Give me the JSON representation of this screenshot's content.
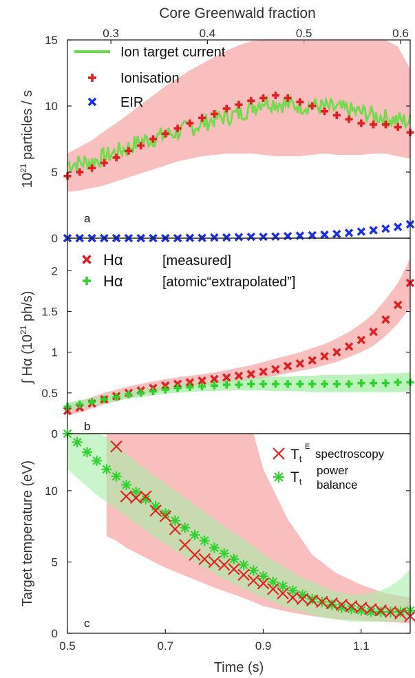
{
  "chart_data": [
    {
      "type": "scatter",
      "panel_label": "a",
      "top_xlabel": "Core Greenwald fraction",
      "top_ticks": [
        "0.3",
        "0.4",
        "0.5",
        "0.6"
      ],
      "top_tick_values": [
        0.3,
        0.4,
        0.5,
        0.6
      ],
      "top_xlim": [
        0.255,
        0.61
      ],
      "ylabel": "10²¹ particles / s",
      "ylabel_base": "10",
      "ylabel_sup": "21",
      "ylabel_rest": " particles / s",
      "xlim": [
        0.5,
        1.2
      ],
      "ylim": [
        0,
        15
      ],
      "yticks": [
        "0",
        "5",
        "10",
        "15"
      ],
      "ytick_values": [
        0,
        5,
        10,
        15
      ],
      "legend_position": "top-left",
      "series": [
        {
          "name": "Ion target current",
          "kind": "line",
          "color": "#66dd44",
          "x": [
            0.5,
            0.55,
            0.6,
            0.65,
            0.7,
            0.75,
            0.8,
            0.85,
            0.9,
            0.95,
            1.0,
            1.05,
            1.1,
            1.15,
            1.2
          ],
          "y": [
            5.6,
            5.8,
            6.5,
            7.3,
            7.8,
            8.3,
            9.0,
            9.4,
            10.4,
            10.1,
            10.0,
            9.8,
            9.5,
            9.1,
            8.8
          ]
        },
        {
          "name": "Ionisation",
          "kind": "marker",
          "marker": "plus",
          "color": "#e02020",
          "band_color": "#f7a8a8",
          "x": [
            0.5,
            0.525,
            0.55,
            0.575,
            0.6,
            0.625,
            0.65,
            0.675,
            0.7,
            0.725,
            0.75,
            0.775,
            0.8,
            0.825,
            0.85,
            0.875,
            0.9,
            0.925,
            0.95,
            0.975,
            1.0,
            1.025,
            1.05,
            1.075,
            1.1,
            1.125,
            1.15,
            1.175,
            1.2
          ],
          "y": [
            4.7,
            5.0,
            5.3,
            5.7,
            6.1,
            6.6,
            7.0,
            7.5,
            7.9,
            8.3,
            8.7,
            9.1,
            9.4,
            9.8,
            10.1,
            10.4,
            10.6,
            10.8,
            10.6,
            10.3,
            10.0,
            9.6,
            9.3,
            9.0,
            8.7,
            8.6,
            8.6,
            8.4,
            8.0
          ],
          "band_low": [
            3.5,
            3.6,
            3.8,
            4.0,
            4.3,
            4.6,
            4.9,
            5.2,
            5.5,
            5.8,
            6.0,
            6.2,
            6.3,
            6.4,
            6.4,
            6.4,
            6.3,
            6.2,
            6.2,
            6.2,
            6.3,
            6.4,
            6.3,
            6.3,
            6.3,
            6.4,
            6.4,
            6.2,
            6.0
          ],
          "band_high": [
            6.4,
            6.9,
            7.4,
            8.1,
            8.7,
            9.4,
            10.1,
            10.8,
            11.5,
            12.1,
            12.7,
            13.2,
            13.7,
            14.2,
            14.6,
            14.9,
            15.0,
            15.0,
            15.0,
            15.0,
            15.0,
            15.0,
            15.0,
            15.0,
            15.0,
            15.0,
            15.0,
            14.5,
            12.8
          ]
        },
        {
          "name": "EIR",
          "kind": "marker",
          "marker": "x",
          "color": "#1a2ee6",
          "x": [
            0.5,
            0.525,
            0.55,
            0.575,
            0.6,
            0.625,
            0.65,
            0.675,
            0.7,
            0.725,
            0.75,
            0.775,
            0.8,
            0.825,
            0.85,
            0.875,
            0.9,
            0.925,
            0.95,
            0.975,
            1.0,
            1.025,
            1.05,
            1.075,
            1.1,
            1.125,
            1.15,
            1.175,
            1.2
          ],
          "y": [
            0.0,
            0.0,
            0.0,
            0.0,
            0.0,
            0.0,
            0.0,
            0.0,
            0.0,
            0.0,
            0.02,
            0.02,
            0.05,
            0.05,
            0.08,
            0.1,
            0.1,
            0.12,
            0.15,
            0.18,
            0.22,
            0.26,
            0.32,
            0.4,
            0.5,
            0.6,
            0.72,
            0.85,
            1.05
          ]
        }
      ]
    },
    {
      "type": "scatter",
      "panel_label": "b",
      "ylabel": "∫ Hα (10²¹ ph/s)",
      "ylabel_prefix": "∫ Hα (10",
      "ylabel_sup": "21",
      "ylabel_rest": " ph/s)",
      "xlim": [
        0.5,
        1.2
      ],
      "ylim": [
        0,
        2.4
      ],
      "yticks": [
        "0",
        "0.5",
        "1",
        "1.5",
        "2"
      ],
      "ytick_values": [
        0,
        0.5,
        1,
        1.5,
        2
      ],
      "legend_position": "top-left",
      "series": [
        {
          "name": "Hα   [measured]",
          "legend_symbol": "Hα",
          "legend_text": "[measured]",
          "kind": "marker",
          "marker": "x",
          "color": "#e02020",
          "band_color": "#f7a8a8",
          "x": [
            0.5,
            0.525,
            0.55,
            0.575,
            0.6,
            0.625,
            0.65,
            0.675,
            0.7,
            0.725,
            0.75,
            0.775,
            0.8,
            0.825,
            0.85,
            0.875,
            0.9,
            0.925,
            0.95,
            0.975,
            1.0,
            1.025,
            1.05,
            1.075,
            1.1,
            1.125,
            1.15,
            1.175,
            1.2
          ],
          "y": [
            0.28,
            0.32,
            0.37,
            0.42,
            0.46,
            0.5,
            0.53,
            0.56,
            0.59,
            0.61,
            0.63,
            0.65,
            0.67,
            0.69,
            0.71,
            0.73,
            0.76,
            0.79,
            0.83,
            0.86,
            0.9,
            0.95,
            1.0,
            1.07,
            1.15,
            1.25,
            1.4,
            1.58,
            1.85
          ],
          "band_low": [
            0.22,
            0.26,
            0.31,
            0.36,
            0.4,
            0.44,
            0.47,
            0.5,
            0.53,
            0.55,
            0.57,
            0.59,
            0.61,
            0.63,
            0.64,
            0.66,
            0.68,
            0.71,
            0.74,
            0.77,
            0.8,
            0.84,
            0.88,
            0.94,
            1.0,
            1.08,
            1.2,
            1.35,
            1.55
          ],
          "band_high": [
            0.36,
            0.4,
            0.45,
            0.5,
            0.54,
            0.58,
            0.61,
            0.64,
            0.67,
            0.69,
            0.71,
            0.73,
            0.75,
            0.78,
            0.81,
            0.84,
            0.88,
            0.92,
            0.96,
            1.0,
            1.05,
            1.1,
            1.17,
            1.25,
            1.35,
            1.47,
            1.65,
            1.85,
            2.15
          ]
        },
        {
          "name": "Hα   [atomic “extrapolated”]",
          "legend_symbol": "Hα",
          "legend_text": "[atomic“extrapolated”]",
          "kind": "marker",
          "marker": "plus",
          "color": "#2ed12e",
          "band_color": "#a6eea6",
          "x": [
            0.5,
            0.525,
            0.55,
            0.575,
            0.6,
            0.625,
            0.65,
            0.675,
            0.7,
            0.725,
            0.75,
            0.775,
            0.8,
            0.825,
            0.85,
            0.875,
            0.9,
            0.925,
            0.95,
            0.975,
            1.0,
            1.025,
            1.05,
            1.075,
            1.1,
            1.125,
            1.15,
            1.175,
            1.2
          ],
          "y": [
            0.33,
            0.36,
            0.39,
            0.42,
            0.45,
            0.48,
            0.5,
            0.52,
            0.54,
            0.56,
            0.57,
            0.58,
            0.59,
            0.6,
            0.6,
            0.61,
            0.61,
            0.61,
            0.61,
            0.61,
            0.61,
            0.61,
            0.61,
            0.61,
            0.62,
            0.62,
            0.62,
            0.63,
            0.63
          ],
          "band_low": [
            0.28,
            0.31,
            0.34,
            0.37,
            0.4,
            0.43,
            0.45,
            0.47,
            0.49,
            0.5,
            0.51,
            0.52,
            0.52,
            0.53,
            0.53,
            0.53,
            0.53,
            0.52,
            0.52,
            0.52,
            0.51,
            0.51,
            0.51,
            0.51,
            0.51,
            0.51,
            0.51,
            0.51,
            0.52
          ],
          "band_high": [
            0.38,
            0.41,
            0.44,
            0.47,
            0.5,
            0.53,
            0.55,
            0.57,
            0.59,
            0.61,
            0.63,
            0.64,
            0.65,
            0.66,
            0.67,
            0.68,
            0.69,
            0.7,
            0.7,
            0.71,
            0.71,
            0.72,
            0.72,
            0.72,
            0.73,
            0.73,
            0.74,
            0.74,
            0.75
          ]
        }
      ]
    },
    {
      "type": "scatter",
      "panel_label": "c",
      "xlabel": "Time (s)",
      "ylabel": "Target temperature (eV)",
      "xlim": [
        0.5,
        1.2
      ],
      "ylim": [
        0,
        14
      ],
      "xticks": [
        "0.5",
        "0.7",
        "0.9",
        "1.1"
      ],
      "xtick_values": [
        0.5,
        0.7,
        0.9,
        1.1
      ],
      "yticks": [
        "0",
        "5",
        "10"
      ],
      "ytick_values": [
        0,
        5,
        10
      ],
      "legend_position": "top-right",
      "series": [
        {
          "name": "Tt E spectroscopy",
          "legend_base": "T",
          "legend_sub": "t",
          "legend_sup": "E",
          "legend_text": "spectroscopy",
          "kind": "marker",
          "marker": "x",
          "color": "#e02020",
          "band_color": "#f7a8a8",
          "x": [
            0.6,
            0.62,
            0.64,
            0.66,
            0.68,
            0.7,
            0.72,
            0.74,
            0.76,
            0.78,
            0.8,
            0.82,
            0.84,
            0.86,
            0.88,
            0.9,
            0.92,
            0.94,
            0.96,
            0.98,
            1.0,
            1.02,
            1.04,
            1.06,
            1.08,
            1.1,
            1.12,
            1.14,
            1.16,
            1.18,
            1.2
          ],
          "y": [
            13.1,
            9.6,
            9.5,
            9.6,
            8.6,
            8.2,
            7.3,
            6.2,
            5.5,
            5.2,
            5.0,
            4.8,
            4.5,
            4.1,
            3.7,
            3.5,
            3.1,
            2.8,
            2.5,
            2.4,
            2.3,
            2.2,
            2.1,
            2.0,
            1.9,
            1.8,
            1.7,
            1.6,
            1.5,
            1.4,
            1.2
          ],
          "band_x": [
            0.58,
            0.6,
            0.62,
            0.66,
            0.7,
            0.75,
            0.8,
            0.85,
            0.88,
            0.9,
            0.95,
            1.0,
            1.05,
            1.1,
            1.15,
            1.2
          ],
          "band_low": [
            6.8,
            6.5,
            6.0,
            5.3,
            4.6,
            3.9,
            3.2,
            2.6,
            2.2,
            1.9,
            1.5,
            1.2,
            1.0,
            0.9,
            0.8,
            0.7
          ],
          "band_high": [
            14.0,
            14.0,
            14.0,
            14.0,
            14.0,
            14.0,
            14.0,
            14.0,
            14.0,
            11.5,
            8.0,
            5.5,
            4.2,
            3.4,
            2.8,
            2.5
          ]
        },
        {
          "name": "Tt power balance",
          "legend_base": "T",
          "legend_sub": "t",
          "legend_text_1": "power",
          "legend_text_2": "balance",
          "kind": "marker",
          "marker": "asterisk",
          "color": "#2ed12e",
          "band_color": "#a6eea6",
          "x": [
            0.5,
            0.52,
            0.54,
            0.56,
            0.58,
            0.6,
            0.62,
            0.64,
            0.66,
            0.68,
            0.7,
            0.72,
            0.74,
            0.76,
            0.78,
            0.8,
            0.82,
            0.84,
            0.86,
            0.88,
            0.9,
            0.92,
            0.94,
            0.96,
            0.98,
            1.0,
            1.02,
            1.04,
            1.06,
            1.08,
            1.1,
            1.12,
            1.14,
            1.16,
            1.18,
            1.2
          ],
          "y": [
            14.0,
            13.4,
            12.7,
            12.1,
            11.5,
            11.0,
            10.4,
            9.9,
            9.4,
            8.9,
            8.4,
            7.9,
            7.4,
            6.9,
            6.5,
            6.0,
            5.6,
            5.2,
            4.8,
            4.4,
            4.0,
            3.6,
            3.3,
            3.0,
            2.7,
            2.4,
            2.2,
            2.0,
            1.8,
            1.7,
            1.6,
            1.5,
            1.5,
            1.5,
            1.5,
            1.6
          ],
          "band_low": [
            11.5,
            10.9,
            10.3,
            9.7,
            9.2,
            8.7,
            8.2,
            7.7,
            7.2,
            6.7,
            6.3,
            5.8,
            5.4,
            5.0,
            4.6,
            4.2,
            3.8,
            3.5,
            3.1,
            2.8,
            2.5,
            2.2,
            1.9,
            1.7,
            1.5,
            1.3,
            1.1,
            1.0,
            0.9,
            0.8,
            0.8,
            0.8,
            0.8,
            0.8,
            0.8,
            0.9
          ],
          "band_high": [
            14.0,
            14.0,
            14.0,
            14.0,
            13.8,
            13.3,
            12.6,
            12.0,
            11.5,
            11.0,
            10.5,
            10.0,
            9.5,
            9.0,
            8.5,
            8.0,
            7.5,
            7.0,
            6.6,
            6.1,
            5.6,
            5.1,
            4.7,
            4.3,
            3.9,
            3.6,
            3.3,
            3.0,
            2.8,
            2.7,
            2.7,
            2.8,
            3.0,
            3.3,
            3.8,
            4.5
          ]
        }
      ]
    }
  ]
}
